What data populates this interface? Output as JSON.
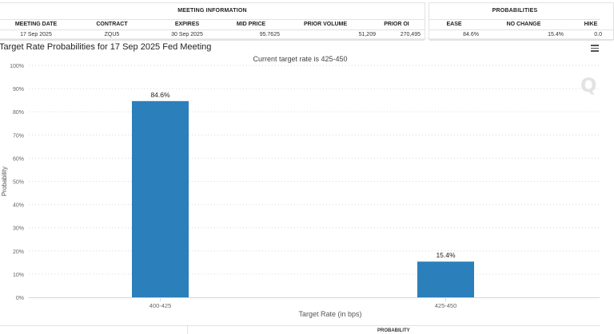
{
  "meeting_info": {
    "header": "MEETING INFORMATION",
    "columns": [
      "MEETING DATE",
      "CONTRACT",
      "EXPIRES",
      "MID PRICE",
      "PRIOR VOLUME",
      "PRIOR OI"
    ],
    "values": [
      "17 Sep 2025",
      "ZQU5",
      "30 Sep 2025",
      "95.7625",
      "51,209",
      "270,495"
    ]
  },
  "probabilities": {
    "header": "PROBABILITIES",
    "columns": [
      "EASE",
      "NO CHANGE",
      "HIKE"
    ],
    "values": [
      "84.6%",
      "15.4%",
      "0.0"
    ]
  },
  "chart_data": {
    "type": "bar",
    "title": "Target Rate Probabilities for 17 Sep 2025 Fed Meeting",
    "subtitle": "Current target rate is 425-450",
    "xlabel": "Target Rate (in bps)",
    "ylabel": "Probability",
    "categories": [
      "400-425",
      "425-450"
    ],
    "values": [
      84.6,
      15.4
    ],
    "data_labels": [
      "84.6%",
      "15.4%"
    ],
    "ylim": [
      0,
      100
    ],
    "yticks": [
      0,
      10,
      20,
      30,
      40,
      50,
      60,
      70,
      80,
      90,
      100
    ],
    "ytick_labels": [
      "0%",
      "10%",
      "20%",
      "30%",
      "40%",
      "50%",
      "60%",
      "70%",
      "80%",
      "90%",
      "100%"
    ],
    "bar_color": "#2b7fba",
    "grid": true,
    "grid_style": "dotted"
  },
  "watermark": "Q",
  "footer": {
    "text": "PROBABILITY"
  }
}
